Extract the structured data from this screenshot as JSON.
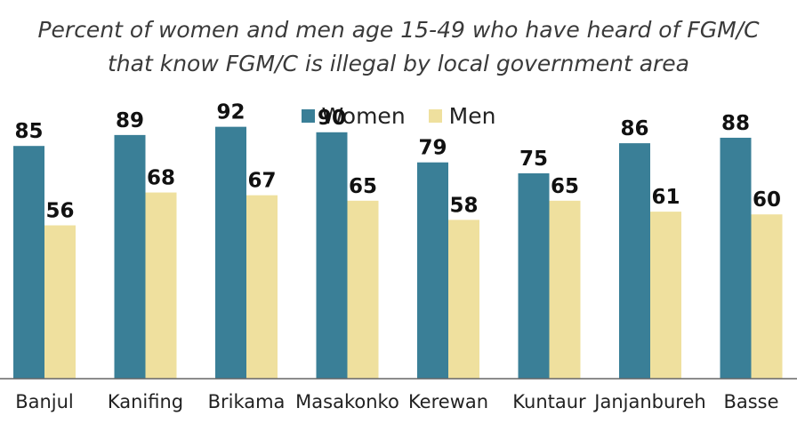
{
  "chart_data": {
    "type": "bar",
    "title": "Percent of women and men age 15-49 who have heard of FGM/C",
    "subtitle": "that know FGM/C is illegal by local government area",
    "categories": [
      "Banjul",
      "Kanifing",
      "Brikama",
      "Masakonko",
      "Kerewan",
      "Kuntaur",
      "Janjanbureh",
      "Basse"
    ],
    "series": [
      {
        "name": "Women",
        "color": "#3a7f97",
        "values": [
          85,
          89,
          92,
          90,
          79,
          75,
          86,
          88
        ]
      },
      {
        "name": "Men",
        "color": "#efe09e",
        "values": [
          56,
          68,
          67,
          65,
          58,
          65,
          61,
          60
        ]
      }
    ],
    "ylim": [
      0,
      100
    ],
    "grid": false,
    "legend": "top-center"
  }
}
